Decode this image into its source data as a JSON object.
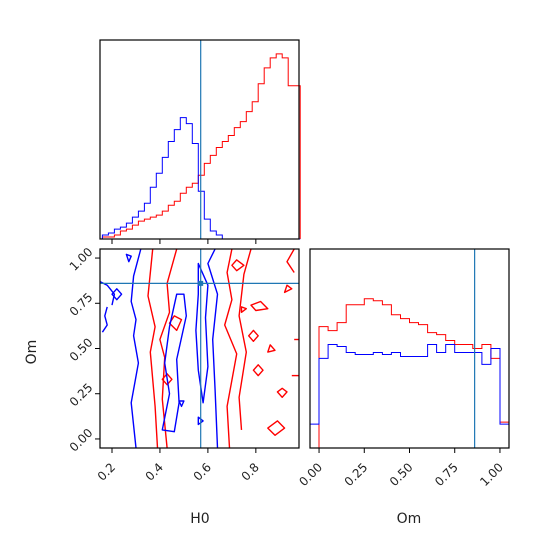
{
  "colors": {
    "series_a": "#ff0000",
    "series_b": "#0000ff",
    "truth": "#1f77b4",
    "frame": "#000000"
  },
  "chart_data": {
    "type": "corner",
    "parameters": [
      "H0",
      "Om"
    ],
    "truth": {
      "H0": 0.57,
      "Om": 0.86
    },
    "axes": {
      "H0": {
        "label": "H0",
        "range": [
          0.15,
          0.98
        ],
        "ticks": [
          0.2,
          0.4,
          0.6,
          0.8
        ],
        "tick_labels": [
          "0.2",
          "0.4",
          "0.6",
          "0.8"
        ]
      },
      "Om": {
        "label": "Om",
        "range": [
          -0.05,
          1.05
        ],
        "ticks": [
          0.0,
          0.25,
          0.5,
          0.75,
          1.0
        ],
        "tick_labels": [
          "0.00",
          "0.25",
          "0.50",
          "0.75",
          "1.00"
        ]
      }
    },
    "hist_H0": {
      "type": "histogram",
      "ylim": [
        0,
        1.0
      ],
      "edges": [
        0.16,
        0.185,
        0.21,
        0.235,
        0.26,
        0.285,
        0.31,
        0.335,
        0.36,
        0.385,
        0.41,
        0.435,
        0.46,
        0.485,
        0.51,
        0.535,
        0.56,
        0.585,
        0.61,
        0.635,
        0.66,
        0.685,
        0.71,
        0.735,
        0.76,
        0.785,
        0.81,
        0.835,
        0.86,
        0.885,
        0.91,
        0.935,
        0.96,
        0.985
      ],
      "series": [
        {
          "name": "",
          "color_key": "series_a",
          "values": [
            0.01,
            0.01,
            0.02,
            0.04,
            0.05,
            0.07,
            0.09,
            0.1,
            0.11,
            0.12,
            0.14,
            0.17,
            0.19,
            0.23,
            0.26,
            0.28,
            0.32,
            0.38,
            0.42,
            0.46,
            0.49,
            0.52,
            0.56,
            0.59,
            0.64,
            0.69,
            0.78,
            0.86,
            0.91,
            0.93,
            0.91,
            0.77,
            0.77
          ]
        },
        {
          "name": "",
          "color_key": "series_b",
          "values": [
            0.02,
            0.03,
            0.05,
            0.06,
            0.08,
            0.11,
            0.14,
            0.18,
            0.26,
            0.33,
            0.41,
            0.49,
            0.55,
            0.61,
            0.58,
            0.48,
            0.24,
            0.1,
            0.04,
            0.02,
            0.0,
            0.0,
            0.0,
            0.0,
            0.0,
            0.0,
            0.0,
            0.0,
            0.0,
            0.0,
            0.0,
            0.0,
            0.0
          ]
        }
      ]
    },
    "hist_Om": {
      "type": "histogram",
      "ylim": [
        0,
        1.0
      ],
      "edges": [
        -0.05,
        0.0,
        0.05,
        0.1,
        0.15,
        0.2,
        0.25,
        0.3,
        0.35,
        0.4,
        0.45,
        0.5,
        0.55,
        0.6,
        0.65,
        0.7,
        0.75,
        0.8,
        0.85,
        0.9,
        0.95,
        1.0,
        1.05
      ],
      "series": [
        {
          "name": "",
          "color_key": "series_a",
          "values": [
            0.0,
            0.61,
            0.59,
            0.63,
            0.72,
            0.72,
            0.75,
            0.74,
            0.72,
            0.67,
            0.65,
            0.63,
            0.62,
            0.58,
            0.57,
            0.54,
            0.52,
            0.52,
            0.5,
            0.52,
            0.45,
            0.13
          ]
        },
        {
          "name": "",
          "color_key": "series_b",
          "values": [
            0.12,
            0.45,
            0.52,
            0.51,
            0.48,
            0.47,
            0.47,
            0.48,
            0.47,
            0.48,
            0.46,
            0.46,
            0.46,
            0.52,
            0.48,
            0.52,
            0.48,
            0.48,
            0.48,
            0.42,
            0.5,
            0.12
          ]
        }
      ]
    },
    "contours": {
      "type": "contour",
      "x": "H0",
      "y": "Om",
      "series": [
        {
          "name": "",
          "color_key": "series_a",
          "paths": [
            [
              [
                0.39,
                -0.05
              ],
              [
                0.38,
                0.18
              ],
              [
                0.36,
                0.48
              ],
              [
                0.38,
                0.62
              ],
              [
                0.35,
                0.79
              ],
              [
                0.37,
                1.05
              ]
            ],
            [
              [
                0.43,
                -0.05
              ],
              [
                0.41,
                0.22
              ],
              [
                0.42,
                0.45
              ],
              [
                0.4,
                0.55
              ],
              [
                0.44,
                0.7
              ],
              [
                0.43,
                0.86
              ],
              [
                0.47,
                1.05
              ]
            ],
            [
              [
                0.69,
                -0.05
              ],
              [
                0.68,
                0.18
              ],
              [
                0.72,
                0.47
              ],
              [
                0.67,
                0.63
              ],
              [
                0.7,
                0.77
              ],
              [
                0.68,
                0.92
              ],
              [
                0.7,
                1.05
              ]
            ],
            [
              [
                0.74,
                0.05
              ],
              [
                0.73,
                0.23
              ],
              [
                0.76,
                0.48
              ],
              [
                0.73,
                0.68
              ],
              [
                0.75,
                0.91
              ],
              [
                0.78,
                1.05
              ]
            ],
            [
              [
                0.96,
                1.05
              ],
              [
                0.93,
                0.98
              ],
              [
                0.96,
                0.92
              ]
            ],
            [
              [
                0.98,
                0.55
              ],
              [
                0.96,
                0.55
              ]
            ],
            [
              [
                0.98,
                0.35
              ],
              [
                0.95,
                0.35
              ]
            ]
          ],
          "loops": [
            [
              [
                0.47,
                0.6
              ],
              [
                0.49,
                0.66
              ],
              [
                0.46,
                0.68
              ],
              [
                0.44,
                0.64
              ]
            ],
            [
              [
                0.43,
                0.3
              ],
              [
                0.45,
                0.33
              ],
              [
                0.43,
                0.36
              ],
              [
                0.41,
                0.33
              ]
            ],
            [
              [
                0.79,
                0.54
              ],
              [
                0.81,
                0.57
              ],
              [
                0.79,
                0.6
              ],
              [
                0.77,
                0.57
              ]
            ],
            [
              [
                0.88,
                0.02
              ],
              [
                0.92,
                0.06
              ],
              [
                0.89,
                0.1
              ],
              [
                0.85,
                0.06
              ]
            ],
            [
              [
                0.8,
                0.71
              ],
              [
                0.85,
                0.72
              ],
              [
                0.82,
                0.76
              ],
              [
                0.78,
                0.74
              ]
            ],
            [
              [
                0.74,
                0.7
              ],
              [
                0.76,
                0.72
              ],
              [
                0.74,
                0.73
              ]
            ],
            [
              [
                0.81,
                0.35
              ],
              [
                0.83,
                0.38
              ],
              [
                0.81,
                0.41
              ],
              [
                0.79,
                0.38
              ]
            ],
            [
              [
                0.85,
                0.48
              ],
              [
                0.88,
                0.49
              ],
              [
                0.86,
                0.52
              ]
            ],
            [
              [
                0.92,
                0.81
              ],
              [
                0.95,
                0.83
              ],
              [
                0.93,
                0.85
              ]
            ],
            [
              [
                0.72,
                0.93
              ],
              [
                0.75,
                0.96
              ],
              [
                0.72,
                0.99
              ],
              [
                0.7,
                0.96
              ]
            ],
            [
              [
                0.91,
                0.23
              ],
              [
                0.93,
                0.26
              ],
              [
                0.91,
                0.28
              ],
              [
                0.89,
                0.26
              ]
            ]
          ]
        },
        {
          "name": "",
          "color_key": "series_b",
          "paths": [
            [
              [
                0.3,
                -0.05
              ],
              [
                0.28,
                0.2
              ],
              [
                0.31,
                0.42
              ],
              [
                0.29,
                0.57
              ],
              [
                0.3,
                0.66
              ],
              [
                0.28,
                0.76
              ],
              [
                0.29,
                0.9
              ],
              [
                0.32,
                1.05
              ]
            ],
            [
              [
                0.64,
                -0.05
              ],
              [
                0.63,
                0.27
              ],
              [
                0.62,
                0.55
              ],
              [
                0.64,
                0.8
              ],
              [
                0.6,
                0.97
              ],
              [
                0.63,
                1.05
              ]
            ],
            [
              [
                0.15,
                0.87
              ],
              [
                0.18,
                0.85
              ],
              [
                0.21,
                0.8
              ],
              [
                0.2,
                0.74
              ]
            ],
            [
              [
                0.16,
                0.59
              ],
              [
                0.18,
                0.63
              ],
              [
                0.17,
                0.68
              ],
              [
                0.18,
                0.73
              ]
            ]
          ],
          "loops": [
            [
              [
                0.41,
                0.05
              ],
              [
                0.46,
                0.04
              ],
              [
                0.48,
                0.2
              ],
              [
                0.47,
                0.44
              ],
              [
                0.51,
                0.68
              ],
              [
                0.5,
                0.8
              ],
              [
                0.47,
                0.8
              ],
              [
                0.44,
                0.62
              ],
              [
                0.42,
                0.42
              ],
              [
                0.44,
                0.25
              ]
            ],
            [
              [
                0.58,
                0.2
              ],
              [
                0.6,
                0.4
              ],
              [
                0.59,
                0.67
              ],
              [
                0.6,
                0.85
              ],
              [
                0.56,
                0.97
              ],
              [
                0.56,
                0.8
              ],
              [
                0.55,
                0.6
              ],
              [
                0.56,
                0.38
              ]
            ],
            [
              [
                0.22,
                0.77
              ],
              [
                0.24,
                0.8
              ],
              [
                0.22,
                0.83
              ],
              [
                0.2,
                0.8
              ]
            ],
            [
              [
                0.27,
                0.98
              ],
              [
                0.28,
                1.01
              ],
              [
                0.26,
                1.02
              ]
            ],
            [
              [
                0.49,
                0.18
              ],
              [
                0.5,
                0.21
              ],
              [
                0.48,
                0.21
              ]
            ],
            [
              [
                0.56,
                0.08
              ],
              [
                0.58,
                0.1
              ],
              [
                0.56,
                0.12
              ]
            ]
          ]
        }
      ]
    }
  }
}
